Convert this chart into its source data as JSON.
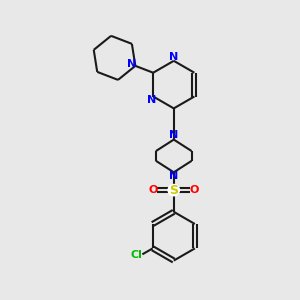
{
  "bg_color": "#e8e8e8",
  "bond_color": "#1a1a1a",
  "nitrogen_color": "#0000ff",
  "sulfur_color": "#cccc00",
  "oxygen_color": "#ff0000",
  "chlorine_color": "#00bb00",
  "line_width": 1.5,
  "font_size": 8,
  "fig_width": 3.0,
  "fig_height": 3.0,
  "dpi": 100,
  "xlim": [
    0,
    10
  ],
  "ylim": [
    0,
    10
  ]
}
